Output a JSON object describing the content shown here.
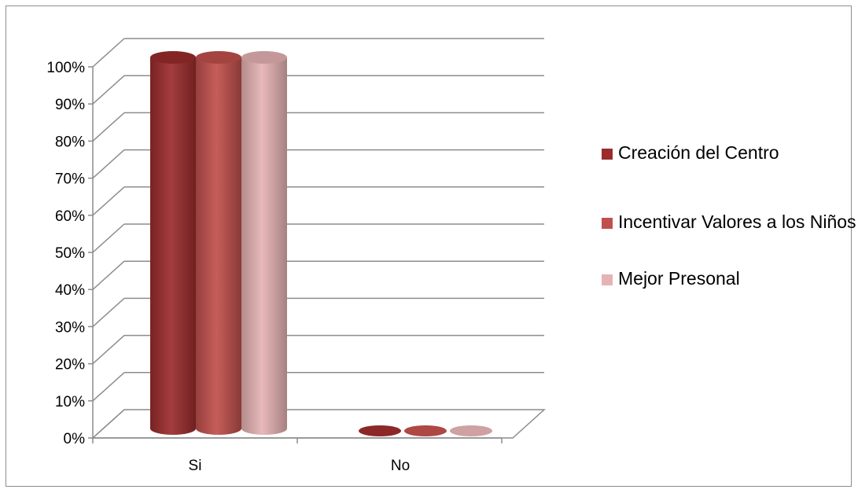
{
  "chart_data": {
    "type": "bar",
    "subtype": "3d-cylinder-clustered",
    "categories": [
      "Si",
      "No"
    ],
    "series": [
      {
        "name": "Creación del Centro",
        "values": [
          100,
          0
        ],
        "color": "#9b2c2c"
      },
      {
        "name": "Incentivar Valores a los Niños",
        "values": [
          100,
          0
        ],
        "color": "#c0504d"
      },
      {
        "name": "Mejor Presonal",
        "values": [
          100,
          0
        ],
        "color": "#e6b3b4"
      }
    ],
    "y_ticks": [
      "0%",
      "10%",
      "20%",
      "30%",
      "40%",
      "50%",
      "60%",
      "70%",
      "80%",
      "90%",
      "100%"
    ],
    "ylim": [
      0,
      100
    ],
    "grid": true,
    "legend_position": "right"
  }
}
